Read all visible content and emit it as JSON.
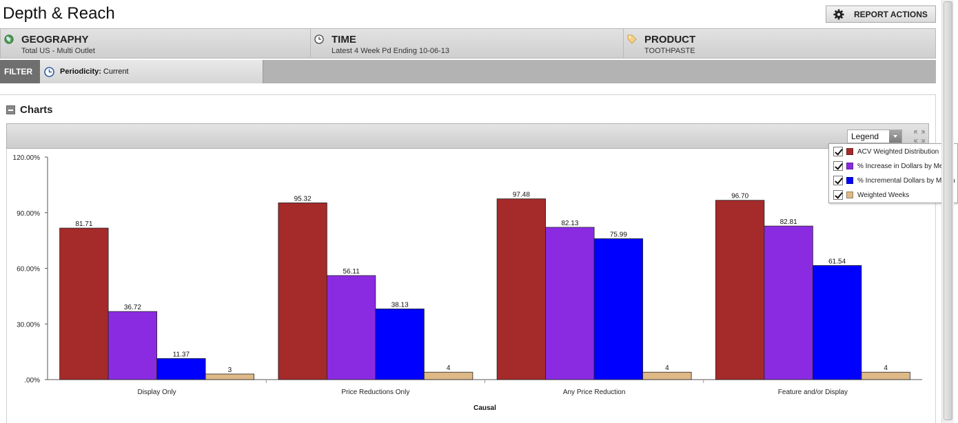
{
  "page": {
    "title": "Depth & Reach"
  },
  "header": {
    "report_actions_label": "REPORT ACTIONS"
  },
  "dimensions": [
    {
      "name": "GEOGRAPHY",
      "value": "Total US - Multi Outlet",
      "icon": "globe-icon"
    },
    {
      "name": "TIME",
      "value": "Latest 4 Week Pd Ending 10-06-13",
      "icon": "clock-icon"
    },
    {
      "name": "PRODUCT",
      "value": "TOOTHPASTE",
      "icon": "tag-icon"
    }
  ],
  "filter": {
    "label": "FILTER",
    "periodicity_label": "Periodicity:",
    "periodicity_value": "Current"
  },
  "charts_section": {
    "title": "Charts",
    "legend_dropdown": "Legend"
  },
  "legend": [
    {
      "label": "ACV Weighted Distribution",
      "color": "#a52a2a",
      "checked": true
    },
    {
      "label": "% Increase in Dollars by Merch",
      "color": "#8a2be2",
      "checked": true
    },
    {
      "label": "% Incremental Dollars by Merch",
      "color": "#0000ff",
      "checked": true
    },
    {
      "label": "Weighted Weeks",
      "color": "#deb887",
      "checked": true
    }
  ],
  "chart_data": {
    "type": "bar",
    "xlabel": "Causal",
    "ylabel": "",
    "ylim": [
      0,
      120
    ],
    "y_ticks": [
      ".00%",
      "30.00%",
      "60.00%",
      "90.00%",
      "120.00%"
    ],
    "categories": [
      "Display Only",
      "Price Reductions Only",
      "Any Price Reduction",
      "Feature and/or Display"
    ],
    "series": [
      {
        "name": "ACV Weighted Distribution",
        "values": [
          81.71,
          95.32,
          97.48,
          96.7
        ],
        "labels": [
          "81.71",
          "95.32",
          "97.48",
          "96.70"
        ],
        "color": "#a52a2a"
      },
      {
        "name": "% Increase in Dollars by Merch",
        "values": [
          36.72,
          56.11,
          82.13,
          82.81
        ],
        "labels": [
          "36.72",
          "56.11",
          "82.13",
          "82.81"
        ],
        "color": "#8a2be2"
      },
      {
        "name": "% Incremental Dollars by Merch",
        "values": [
          11.37,
          38.13,
          75.99,
          61.54
        ],
        "labels": [
          "11.37",
          "38.13",
          "75.99",
          "61.54"
        ],
        "color": "#0000ff"
      },
      {
        "name": "Weighted Weeks",
        "values": [
          3,
          4,
          4,
          4
        ],
        "labels": [
          "3",
          "4",
          "4",
          "4"
        ],
        "color": "#deb887"
      }
    ],
    "grid": false,
    "legend_position": "top-right"
  }
}
